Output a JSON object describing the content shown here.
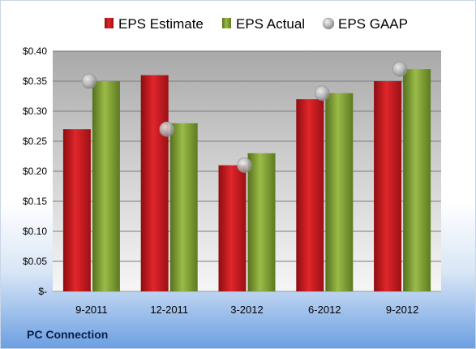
{
  "chart_data": {
    "type": "bar",
    "categories": [
      "9-2011",
      "12-2011",
      "3-2012",
      "6-2012",
      "9-2012"
    ],
    "series": [
      {
        "name": "EPS Estimate",
        "kind": "bar",
        "color": "#c8181e",
        "values": [
          0.27,
          0.36,
          0.21,
          0.32,
          0.35
        ]
      },
      {
        "name": "EPS Actual",
        "kind": "bar",
        "color": "#7a9a2c",
        "values": [
          0.35,
          0.28,
          0.23,
          0.33,
          0.37
        ]
      },
      {
        "name": "EPS GAAP",
        "kind": "scatter",
        "color": "#a8a8a8",
        "values": [
          0.35,
          0.27,
          0.21,
          0.33,
          0.37
        ]
      }
    ],
    "yticks": [
      "$-",
      "$0.05",
      "$0.10",
      "$0.15",
      "$0.20",
      "$0.25",
      "$0.30",
      "$0.35",
      "$0.40"
    ],
    "ylim": [
      0,
      0.4
    ],
    "grid": true,
    "legend_position": "top",
    "footer": "PC Connection"
  }
}
